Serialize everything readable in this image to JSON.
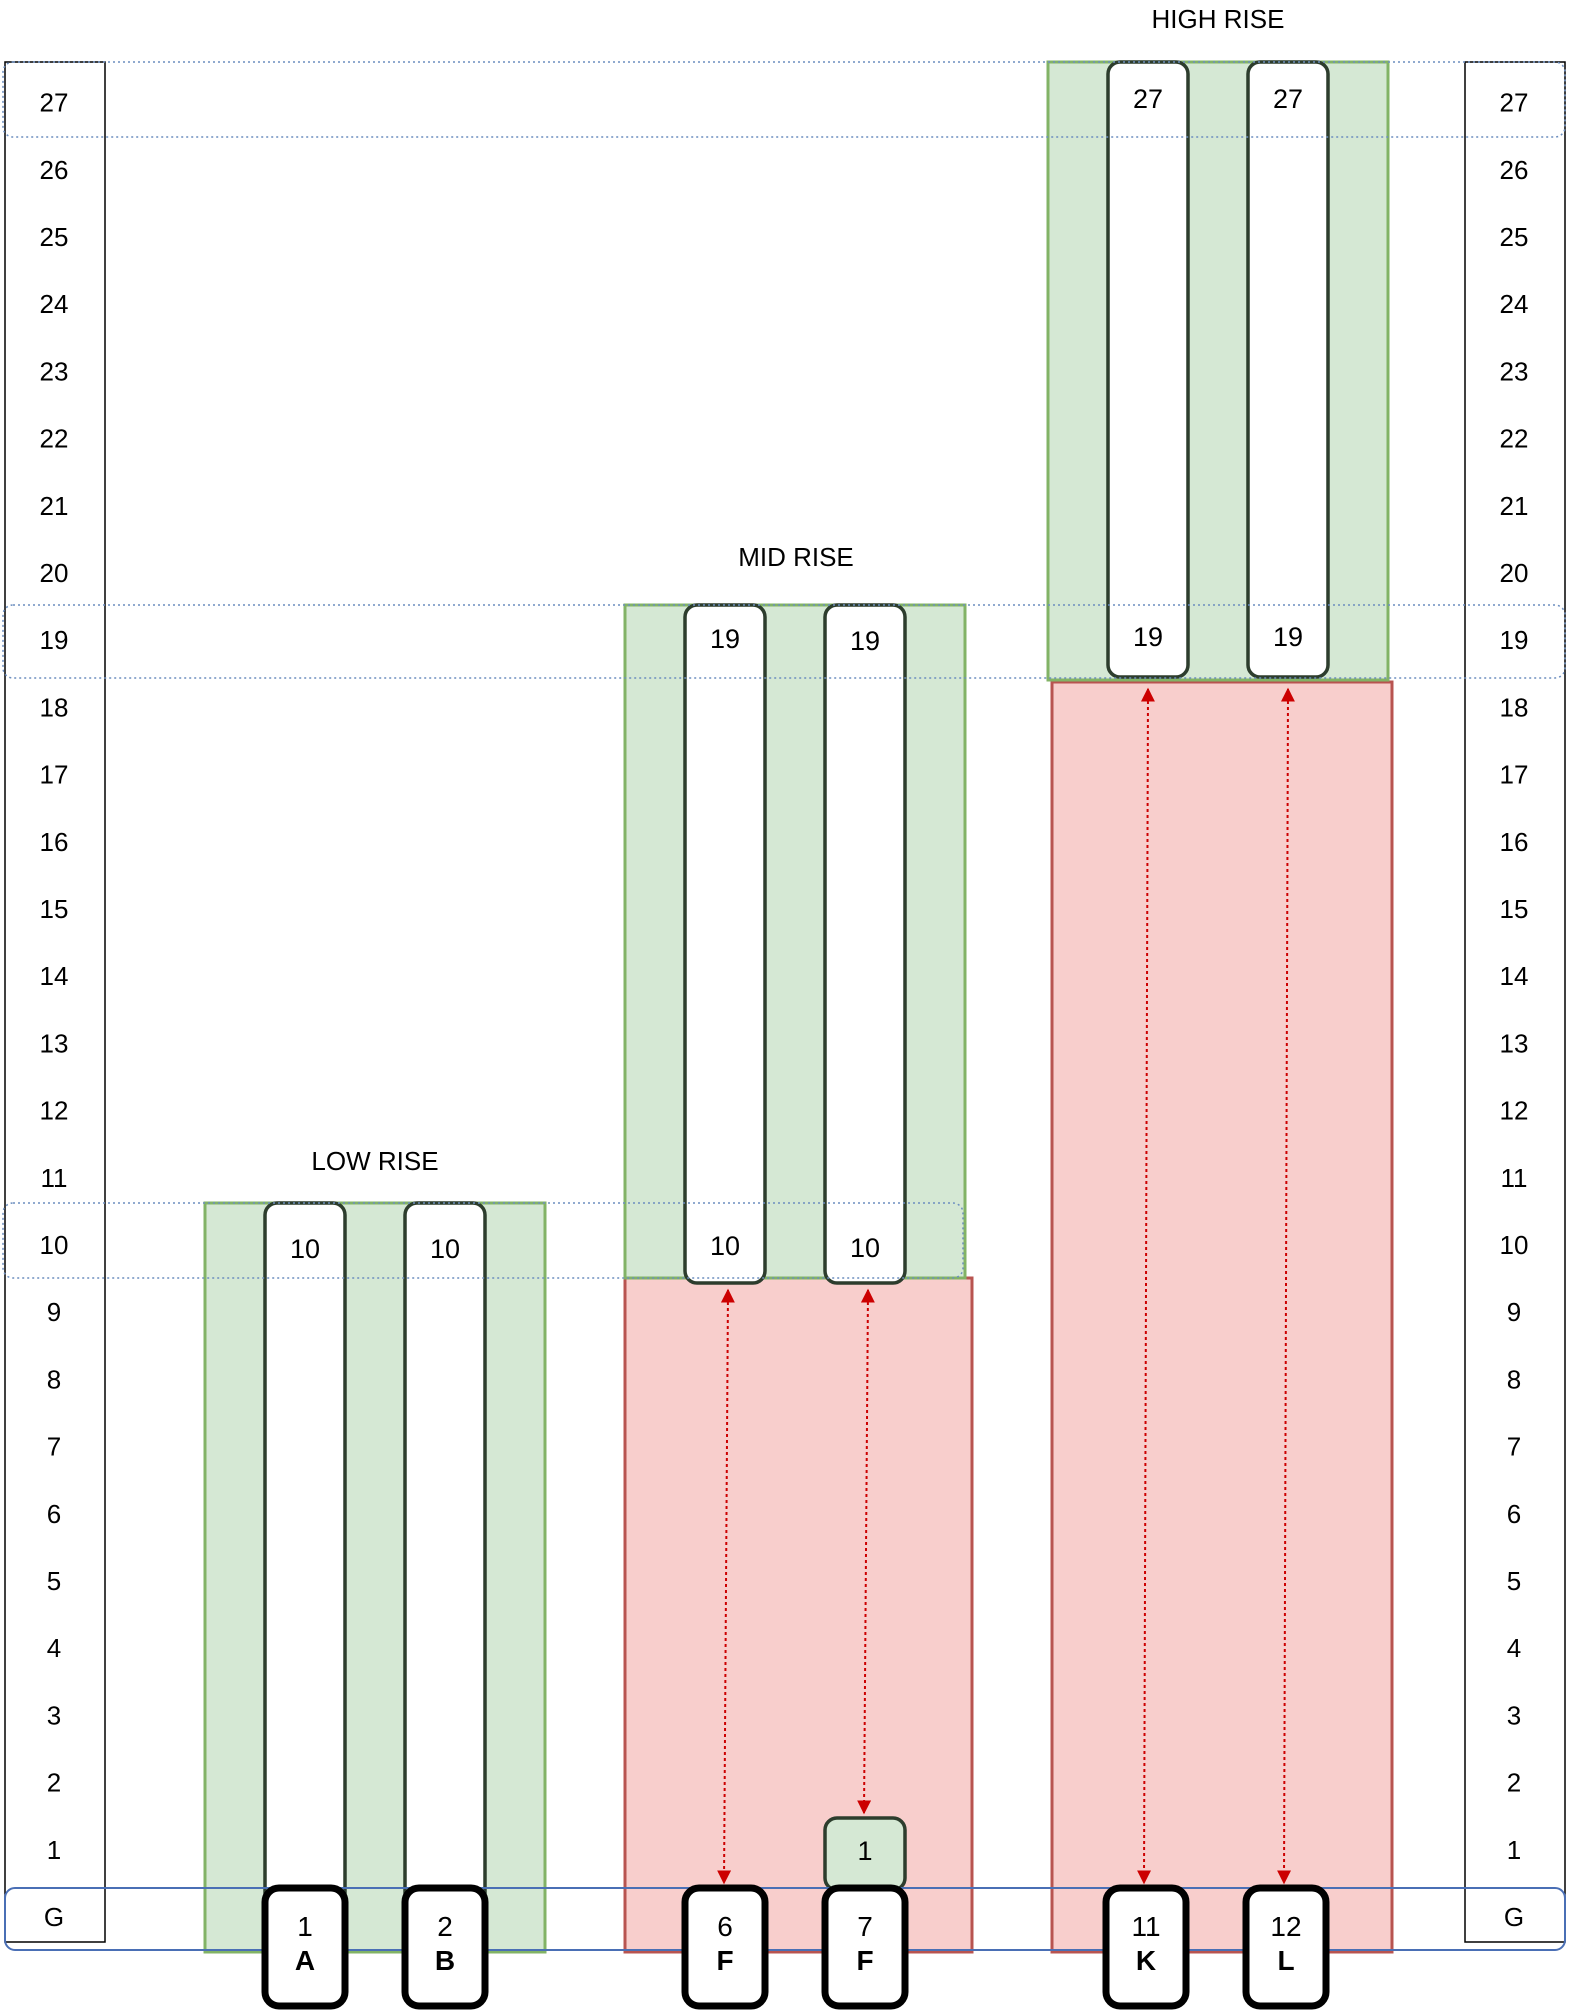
{
  "floors": [
    "G",
    "1",
    "2",
    "3",
    "4",
    "5",
    "6",
    "7",
    "8",
    "9",
    "10",
    "11",
    "12",
    "13",
    "14",
    "15",
    "16",
    "17",
    "18",
    "19",
    "20",
    "21",
    "22",
    "23",
    "24",
    "25",
    "26",
    "27"
  ],
  "zones": [
    {
      "id": "low",
      "label": "LOW RISE",
      "express": false,
      "cars": [
        {
          "number": "1",
          "letter": "A",
          "top": "10"
        },
        {
          "number": "2",
          "letter": "B",
          "top": "10"
        }
      ]
    },
    {
      "id": "mid",
      "label": "MID RISE",
      "express": true,
      "cars": [
        {
          "number": "6",
          "letter": "F",
          "top": "19",
          "bottom": "10"
        },
        {
          "number": "7",
          "letter": "F",
          "top": "19",
          "bottom": "10",
          "stop": "1"
        }
      ]
    },
    {
      "id": "high",
      "label": "HIGH RISE",
      "express": true,
      "cars": [
        {
          "number": "11",
          "letter": "K",
          "top": "27",
          "bottom": "19"
        },
        {
          "number": "12",
          "letter": "L",
          "top": "27",
          "bottom": "19"
        }
      ]
    }
  ],
  "colors": {
    "served": "#d5e8d4",
    "served_border": "#82b366",
    "express": "#f8cecc",
    "express_border": "#b85450",
    "arrow": "#cc0000",
    "band": "#6c8ebf",
    "ground_band": "#4a6fb5"
  }
}
